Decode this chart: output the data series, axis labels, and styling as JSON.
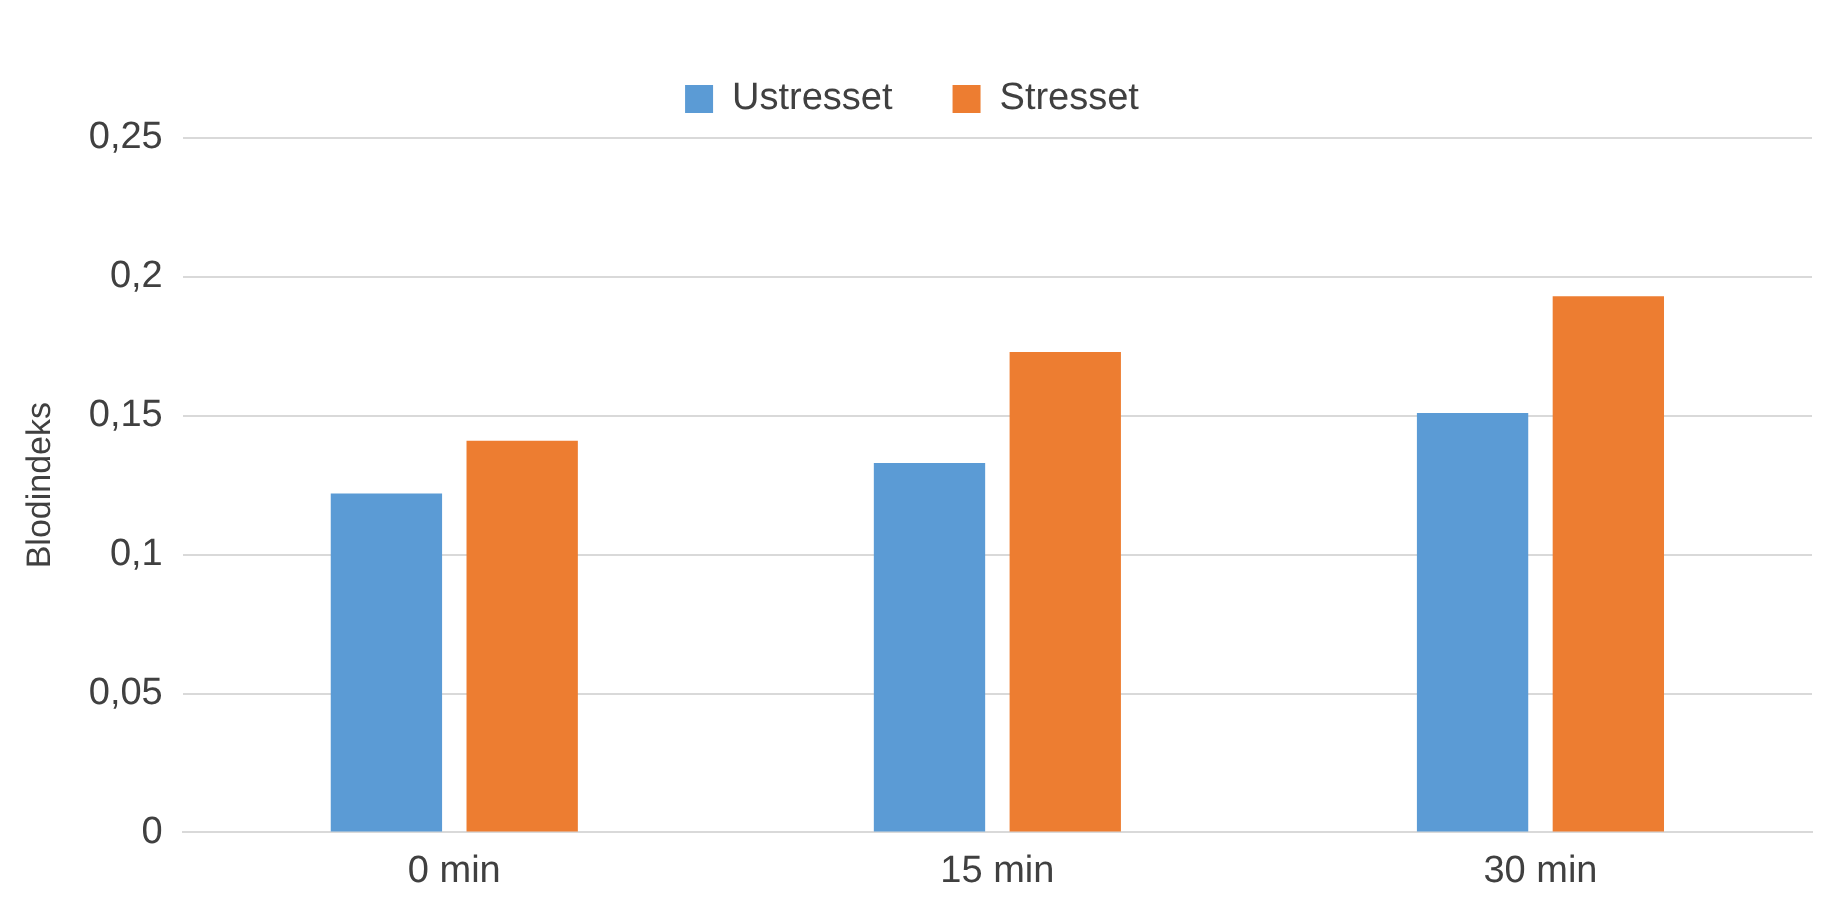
{
  "chart_data": {
    "type": "bar",
    "ylabel": "Blodindeks",
    "categories": [
      "0 min",
      "15 min",
      "30 min"
    ],
    "series": [
      {
        "name": "Ustresset",
        "color": "#5b9bd5",
        "values": [
          0.122,
          0.133,
          0.151
        ]
      },
      {
        "name": "Stresset",
        "color": "#ed7d31",
        "values": [
          0.141,
          0.173,
          0.193
        ]
      }
    ],
    "ylim": [
      0,
      0.25
    ],
    "yticks": [
      {
        "value": 0,
        "label": "0"
      },
      {
        "value": 0.05,
        "label": "0,05"
      },
      {
        "value": 0.1,
        "label": "0,1"
      },
      {
        "value": 0.15,
        "label": "0,15"
      },
      {
        "value": 0.2,
        "label": "0,2"
      },
      {
        "value": 0.25,
        "label": "0,25"
      }
    ],
    "grid": "y",
    "legend": "top"
  }
}
